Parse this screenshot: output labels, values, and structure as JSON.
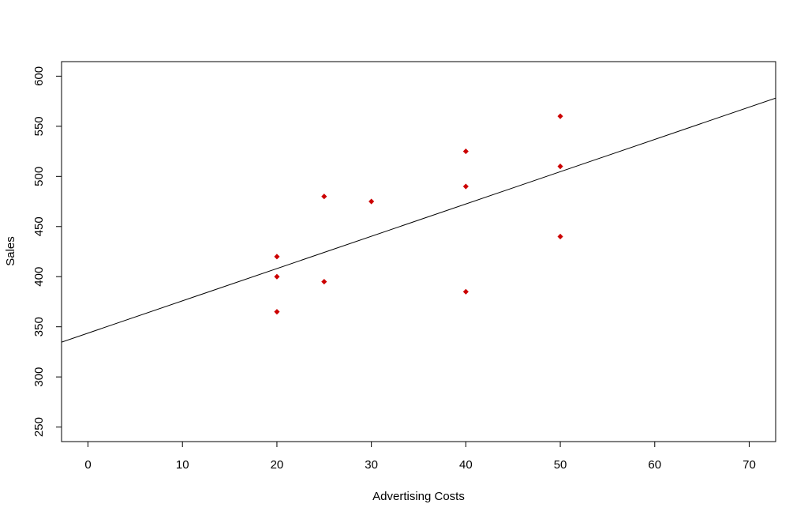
{
  "chart_data": {
    "type": "scatter",
    "title": "",
    "xlabel": "Advertising Costs",
    "ylabel": "Sales",
    "xlim": [
      -2.8,
      72.8
    ],
    "ylim": [
      235.5,
      614.5
    ],
    "xticks": [
      0,
      10,
      20,
      30,
      40,
      50,
      60,
      70
    ],
    "yticks": [
      250,
      300,
      350,
      400,
      450,
      500,
      550,
      600
    ],
    "grid": false,
    "point_color": "#cc0000",
    "line_color": "#000000",
    "points": [
      {
        "x": 20,
        "y": 365
      },
      {
        "x": 20,
        "y": 400
      },
      {
        "x": 20,
        "y": 420
      },
      {
        "x": 25,
        "y": 395
      },
      {
        "x": 25,
        "y": 480
      },
      {
        "x": 30,
        "y": 475
      },
      {
        "x": 40,
        "y": 385
      },
      {
        "x": 40,
        "y": 490
      },
      {
        "x": 40,
        "y": 525
      },
      {
        "x": 50,
        "y": 440
      },
      {
        "x": 50,
        "y": 510
      },
      {
        "x": 50,
        "y": 560
      }
    ],
    "regression_line": {
      "intercept": 343.7,
      "slope": 3.22
    }
  }
}
